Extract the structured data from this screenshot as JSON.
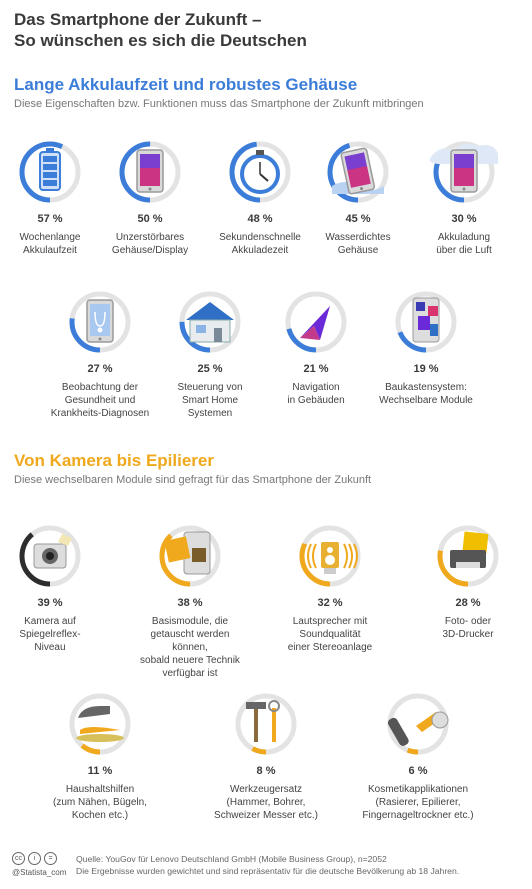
{
  "title": "Das Smartphone der Zukunft –\nSo wünschen es sich die Deutschen",
  "colors": {
    "blue": "#3b7dd8",
    "gold": "#f0a81c",
    "dark": "#2d2d2d",
    "ring": "#e3e3e3"
  },
  "section1": {
    "heading": "Lange Akkulaufzeit und robustes Gehäuse",
    "subtitle": "Diese Eigenschaften bzw. Funktionen muss das Smartphone der Zukunft mitbringen"
  },
  "section2": {
    "heading": "Von Kamera bis Epilierer",
    "subtitle": "Diese wechselbaren Module sind gefragt für das Smartphone der Zukunft"
  },
  "chart_data": [
    {
      "type": "pie",
      "categories": [
        "Wochenlange Akkulaufzeit",
        "Unzerstörbares Gehäuse/Display",
        "Sekundenschnelle Akkuladezeit",
        "Wasserdichtes Gehäuse",
        "Akkuladung über die Luft",
        "Beobachtung der Gesundheit und Krankheits-Diagnosen",
        "Steuerung von Smart Home Systemen",
        "Navigation in Gebäuden",
        "Baukastensystem: Wechselbare Module"
      ],
      "values": [
        57,
        50,
        48,
        45,
        30,
        27,
        25,
        21,
        19
      ],
      "labels": [
        "Wochenlange\nAkkulaufzeit",
        "Unzerstörbares\nGehäuse/Display",
        "Sekundenschnelle\nAkkuladezeit",
        "Wasserdichtes\nGehäuse",
        "Akkuladung\nüber die Luft",
        "Beobachtung der\nGesundheit und\nKrankheits-Diagnosen",
        "Steuerung von\nSmart Home\nSystemen",
        "Navigation\nin Gebäuden",
        "Baukastensystem:\nWechselbare Module"
      ],
      "icons": [
        "battery-icon",
        "phone-icon",
        "stopwatch-icon",
        "waterproof-phone-icon",
        "wireless-charging-icon",
        "health-phone-icon",
        "smart-home-icon",
        "navigation-icon",
        "modular-phone-icon"
      ]
    },
    {
      "type": "pie",
      "categories": [
        "Kamera auf Spiegelreflex-Niveau",
        "Basismodule, die getauscht werden können, sobald neuere Technik verfügbar ist",
        "Lautsprecher mit Soundqualität einer Stereoanlage",
        "Foto- oder 3D-Drucker",
        "Haushaltshilfen (zum Nähen, Bügeln, Kochen etc.)",
        "Werkzeugersatz (Hammer, Bohrer, Schweizer Messer etc.)",
        "Kosmetikapplikationen (Rasierer, Epilierer, Fingernageltrockner etc.)"
      ],
      "values": [
        39,
        38,
        32,
        28,
        11,
        8,
        6
      ],
      "labels": [
        "Kamera auf\nSpiegelreflex-\nNiveau",
        "Basismodule, die\ngetauscht werden können,\nsobald neuere Technik\nverfügbar ist",
        "Lautsprecher mit\nSoundqualität\neiner Stereoanlage",
        "Foto- oder\n3D-Drucker",
        "Haushaltshilfen\n(zum Nähen, Bügeln,\nKochen etc.)",
        "Werkzeugersatz\n(Hammer, Bohrer,\nSchweizer Messer etc.)",
        "Kosmetikapplikationen\n(Rasierer, Epilierer,\nFingernageltrockner etc.)"
      ],
      "icons": [
        "camera-icon",
        "module-swap-icon",
        "speaker-icon",
        "printer-icon",
        "iron-icon",
        "tools-icon",
        "cosmetics-icon"
      ]
    }
  ],
  "footer": {
    "cc_icons": [
      "cc",
      "i",
      "="
    ],
    "brand": "@Statista_com",
    "source": "Quelle: YouGov für Lenovo Deutschland GmbH (Mobile Business Group), n=2052",
    "note": "Die Ergebnisse wurden gewichtet und sind repräsentativ für die deutsche Bevölkerung ab 18 Jahren."
  }
}
